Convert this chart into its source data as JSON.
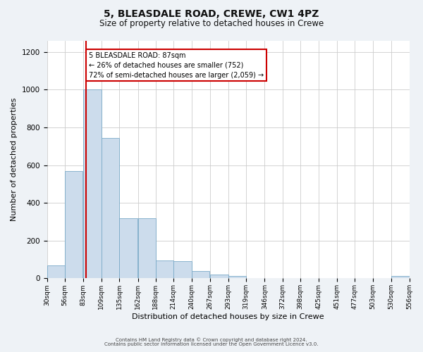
{
  "title": "5, BLEASDALE ROAD, CREWE, CW1 4PZ",
  "subtitle": "Size of property relative to detached houses in Crewe",
  "xlabel": "Distribution of detached houses by size in Crewe",
  "ylabel": "Number of detached properties",
  "bar_edges": [
    30,
    56,
    83,
    109,
    135,
    162,
    188,
    214,
    240,
    267,
    293,
    319,
    346,
    372,
    398,
    425,
    451,
    477,
    503,
    530,
    556
  ],
  "bar_heights": [
    70,
    570,
    1000,
    745,
    320,
    318,
    95,
    92,
    40,
    20,
    14,
    0,
    0,
    0,
    0,
    0,
    0,
    0,
    0,
    12,
    0
  ],
  "bar_color": "#ccdcec",
  "bar_edgecolor": "#7aaac8",
  "property_value": 87,
  "vline_color": "#cc0000",
  "annotation_text": "5 BLEASDALE ROAD: 87sqm\n← 26% of detached houses are smaller (752)\n72% of semi-detached houses are larger (2,059) →",
  "annotation_box_edgecolor": "#cc0000",
  "annotation_box_facecolor": "#ffffff",
  "ylim": [
    0,
    1260
  ],
  "yticks": [
    0,
    200,
    400,
    600,
    800,
    1000,
    1200
  ],
  "footer_line1": "Contains HM Land Registry data © Crown copyright and database right 2024.",
  "footer_line2": "Contains public sector information licensed under the Open Government Licence v3.0.",
  "bg_color": "#eef2f6",
  "plot_bg_color": "#ffffff",
  "title_fontsize": 10,
  "subtitle_fontsize": 8.5,
  "tick_label_fontsize": 6.5,
  "axis_label_fontsize": 8,
  "footer_fontsize": 5,
  "annotation_fontsize": 7
}
